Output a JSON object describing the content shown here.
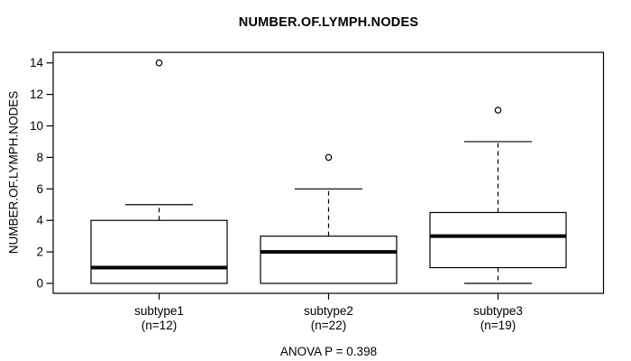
{
  "chart_data": {
    "type": "boxplot",
    "title": "NUMBER.OF.LYMPH.NODES",
    "ylabel": "NUMBER.OF.LYMPH.NODES",
    "xlabel": "",
    "annotation": "ANOVA P = 0.398",
    "yticks": [
      0,
      2,
      4,
      6,
      8,
      10,
      12,
      14
    ],
    "ylim": [
      -0.6,
      14.6
    ],
    "grid": false,
    "legend": "none",
    "colors": {
      "line": "#000000",
      "box_fill": "#ffffff",
      "background": "#ffffff"
    },
    "groups": [
      {
        "label": "subtype1",
        "n_label": "(n=12)",
        "n": 12,
        "whisker_low": 0,
        "q1": 0,
        "median": 1,
        "q3": 4,
        "whisker_high": 5,
        "outliers": [
          14
        ]
      },
      {
        "label": "subtype2",
        "n_label": "(n=22)",
        "n": 22,
        "whisker_low": 0,
        "q1": 0,
        "median": 2,
        "q3": 3,
        "whisker_high": 6,
        "outliers": [
          8
        ]
      },
      {
        "label": "subtype3",
        "n_label": "(n=19)",
        "n": 19,
        "whisker_low": 0,
        "q1": 1,
        "median": 3,
        "q3": 4.5,
        "whisker_high": 9,
        "outliers": [
          11
        ]
      }
    ]
  }
}
